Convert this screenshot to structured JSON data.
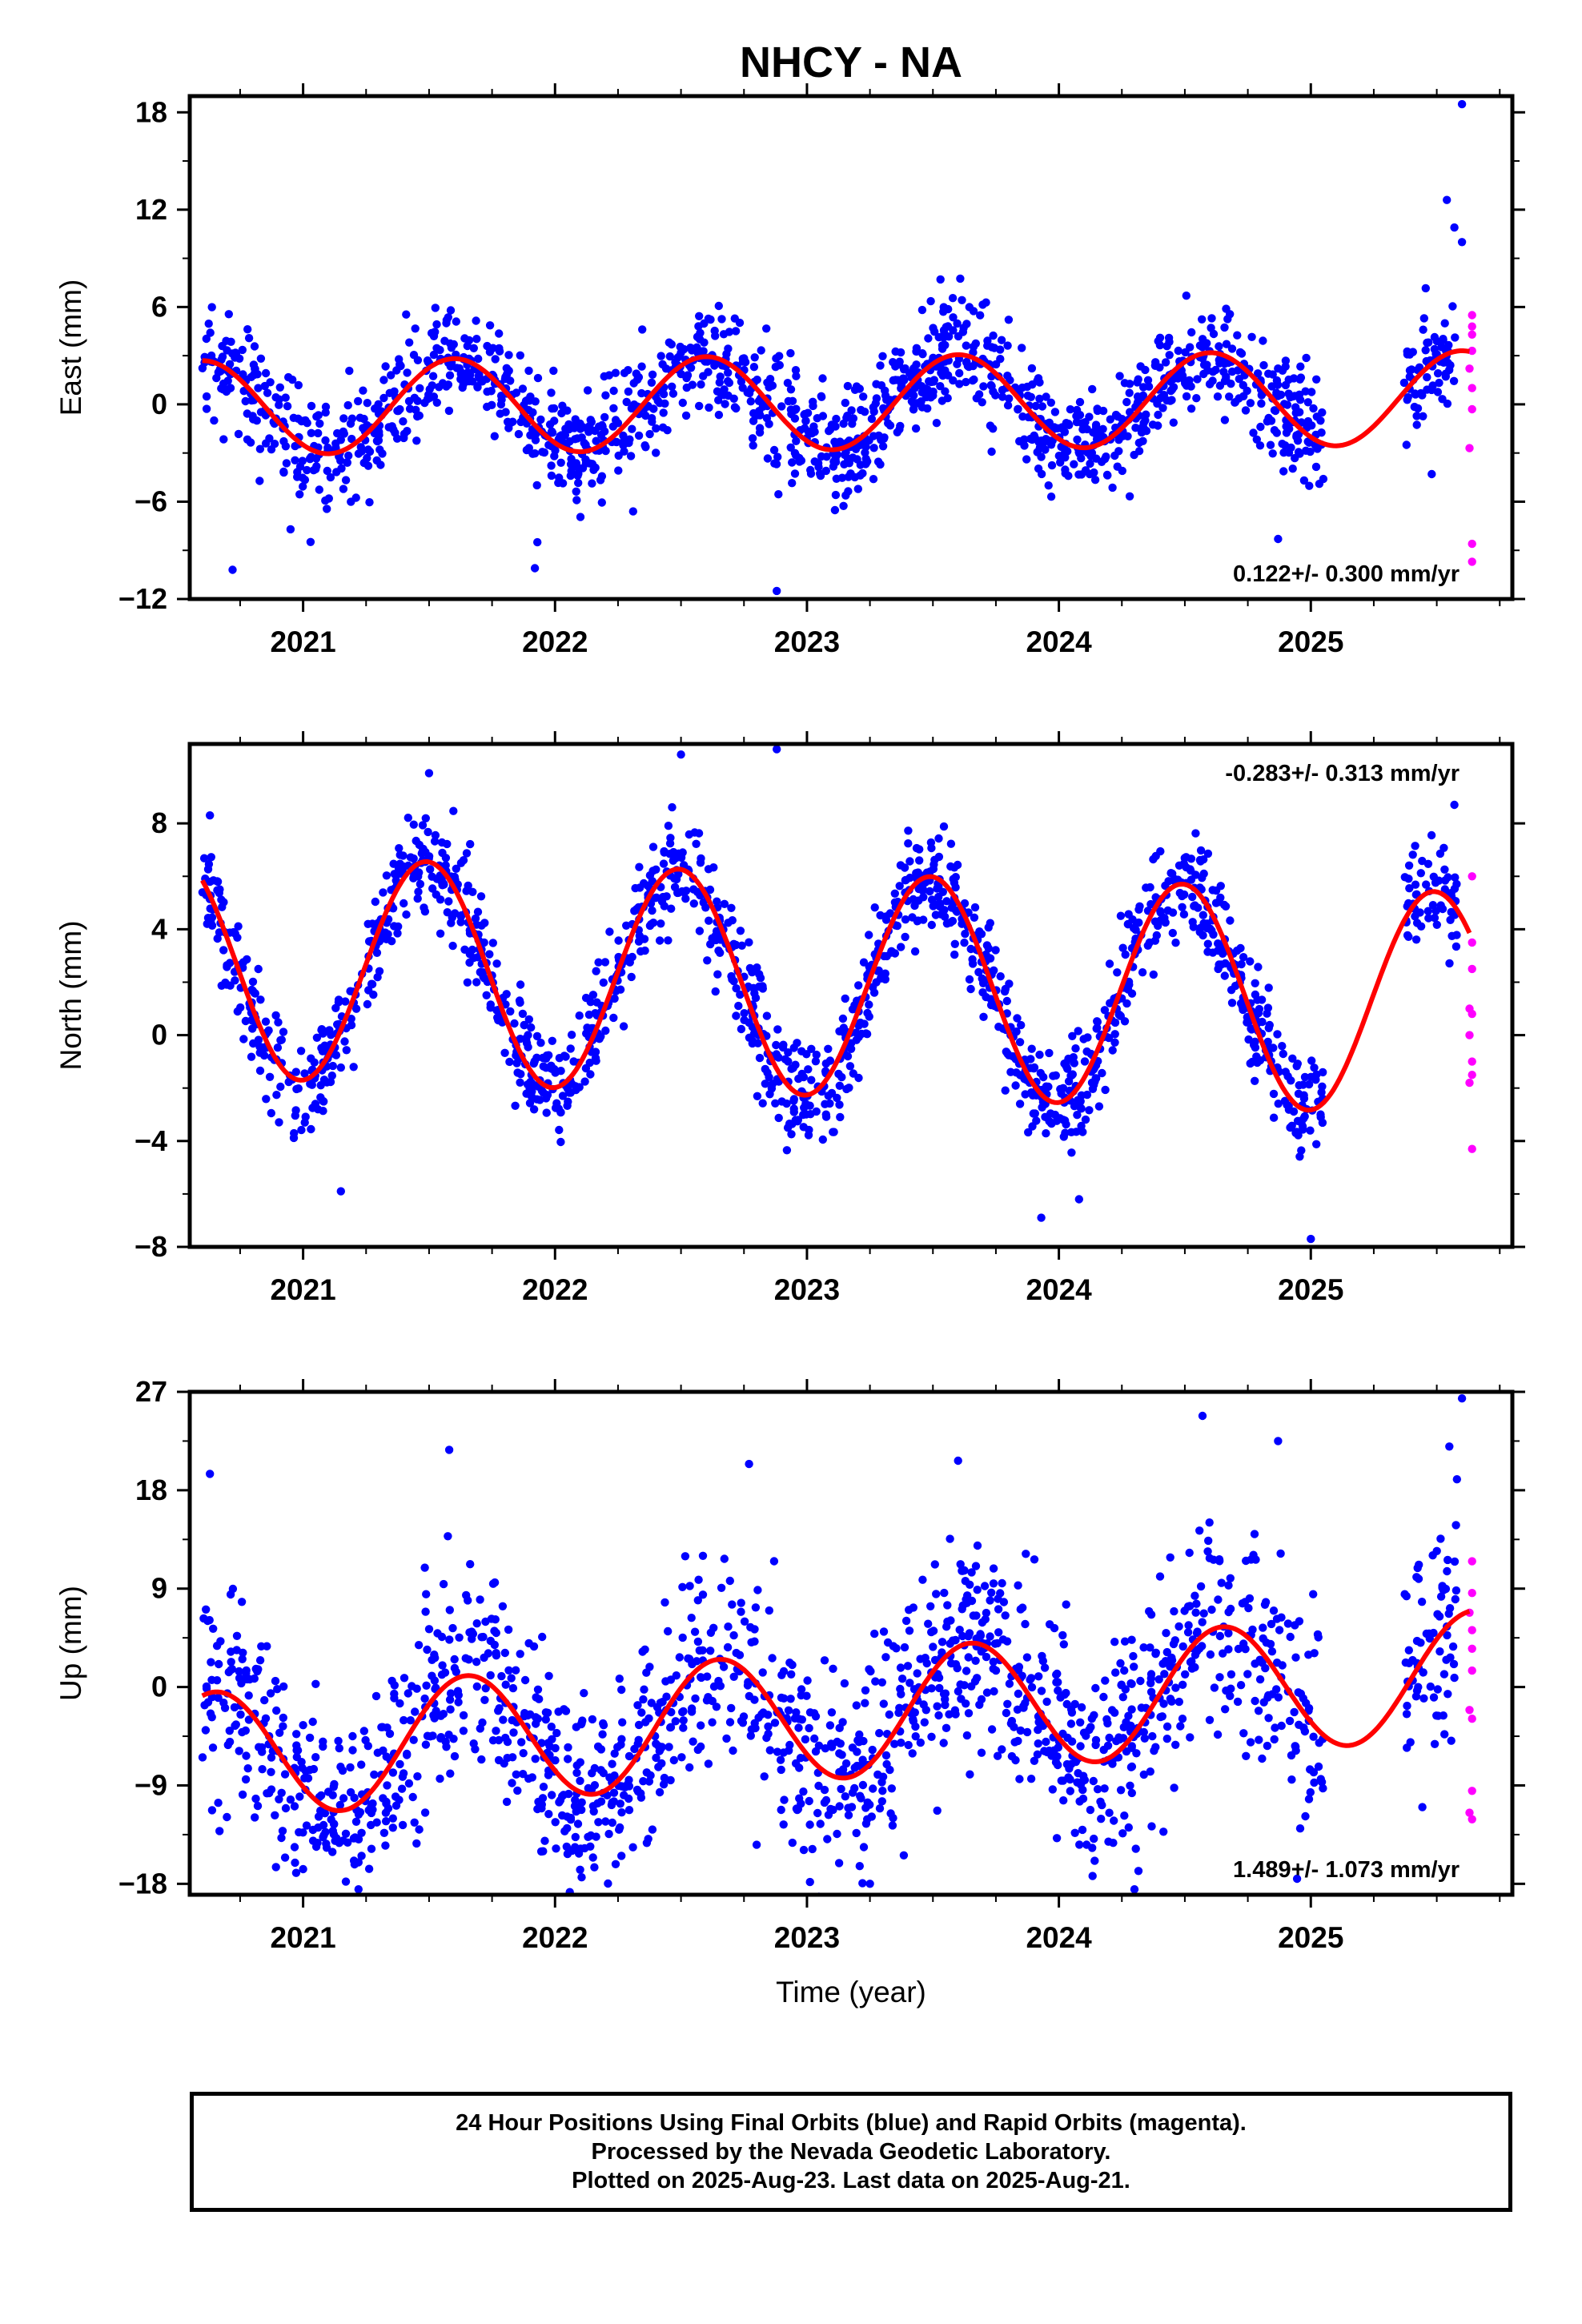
{
  "page": {
    "title": "NHCY - NA",
    "xlabel": "Time (year)",
    "caption": [
      "24 Hour Positions Using Final Orbits (blue) and Rapid Orbits (magenta).",
      "Processed by the Nevada Geodetic Laboratory.",
      "Plotted on 2025-Aug-23. Last data on 2025-Aug-21."
    ]
  },
  "colors": {
    "final_orbits": "#0000ff",
    "rapid_orbits": "#ff00ff",
    "model_fit": "#ff0000",
    "frame": "#000000"
  },
  "chart_data": [
    {
      "type": "scatter",
      "ylabel": "East (mm)",
      "rate_label": "0.122+/- 0.300 mm/yr",
      "rate_position": "bottom-right",
      "xlim": [
        2020.55,
        2025.8
      ],
      "ylim": [
        -12,
        19
      ],
      "xticks": [
        2021,
        2022,
        2023,
        2024,
        2025
      ],
      "xtick_labels": [
        "2021",
        "2022",
        "2023",
        "2024",
        "2025"
      ],
      "yticks": [
        -12,
        -6,
        0,
        6,
        12,
        18
      ],
      "ytick_labels": [
        "−12",
        "−6",
        "0",
        "6",
        "12",
        "18"
      ],
      "grid": false,
      "series": [
        {
          "key": "final",
          "color": "#0000ff",
          "scatter": 1.7,
          "seasonal": {
            "trend": 0.122,
            "offset": 0.1,
            "amp": 2.9,
            "phase": 2021.6
          },
          "gap": [
            2025.05,
            2025.37
          ],
          "x_range": [
            2020.6,
            2025.58
          ],
          "n": 1650,
          "outliers": [
            [
              2020.72,
              -10.2
            ],
            [
              2020.95,
              -7.7
            ],
            [
              2021.92,
              -10.1
            ],
            [
              2021.93,
              -8.5
            ],
            [
              2022.88,
              -11.5
            ],
            [
              2023.53,
              7.7
            ],
            [
              2024.87,
              -8.3
            ],
            [
              2025.54,
              12.6
            ],
            [
              2025.57,
              10.9
            ],
            [
              2025.6,
              18.5
            ],
            [
              2025.6,
              10.0
            ],
            [
              2025.48,
              -4.3
            ],
            [
              2022.31,
              -6.6
            ]
          ]
        },
        {
          "key": "rapid",
          "color": "#ff00ff",
          "points": [
            [
              2025.64,
              5.5
            ],
            [
              2025.64,
              4.8
            ],
            [
              2025.64,
              4.3
            ],
            [
              2025.64,
              3.3
            ],
            [
              2025.63,
              2.2
            ],
            [
              2025.64,
              1.0
            ],
            [
              2025.64,
              -0.3
            ],
            [
              2025.63,
              -2.7
            ],
            [
              2025.64,
              -8.6
            ],
            [
              2025.64,
              -9.7
            ]
          ]
        }
      ],
      "model": {
        "color": "#ff0000",
        "x_range": [
          2020.6,
          2025.63
        ],
        "trend": 0.122,
        "offset": 0.1,
        "amp": 2.9,
        "phase": 2021.6
      }
    },
    {
      "type": "scatter",
      "ylabel": "North (mm)",
      "rate_label": "-0.283+/- 0.313 mm/yr",
      "rate_position": "top-right",
      "xlim": [
        2020.55,
        2025.8
      ],
      "ylim": [
        -8,
        11
      ],
      "xticks": [
        2021,
        2022,
        2023,
        2024,
        2025
      ],
      "xtick_labels": [
        "2021",
        "2022",
        "2023",
        "2024",
        "2025"
      ],
      "yticks": [
        -8,
        -4,
        0,
        4,
        8
      ],
      "ytick_labels": [
        "−8",
        "−4",
        "0",
        "4",
        "8"
      ],
      "grid": false,
      "series": [
        {
          "key": "final",
          "color": "#0000ff",
          "scatter": 1.0,
          "seasonal": {
            "trend": -0.283,
            "offset": 1.9,
            "amp": 4.2,
            "phase": 2021.49
          },
          "gap": [
            2025.05,
            2025.37
          ],
          "x_range": [
            2020.6,
            2025.58
          ],
          "n": 1650,
          "outliers": [
            [
              2020.63,
              8.3
            ],
            [
              2021.15,
              -5.9
            ],
            [
              2021.5,
              9.9
            ],
            [
              2022.5,
              10.6
            ],
            [
              2022.88,
              10.8
            ],
            [
              2023.93,
              -6.9
            ],
            [
              2024.08,
              -6.2
            ],
            [
              2025.0,
              -7.7
            ],
            [
              2025.57,
              8.7
            ]
          ]
        },
        {
          "key": "rapid",
          "color": "#ff00ff",
          "points": [
            [
              2025.64,
              6.0
            ],
            [
              2025.64,
              3.5
            ],
            [
              2025.64,
              2.5
            ],
            [
              2025.63,
              1.0
            ],
            [
              2025.64,
              0.8
            ],
            [
              2025.63,
              0.0
            ],
            [
              2025.64,
              -1.0
            ],
            [
              2025.64,
              -1.5
            ],
            [
              2025.63,
              -1.8
            ],
            [
              2025.64,
              -4.3
            ]
          ]
        }
      ],
      "model": {
        "color": "#ff0000",
        "x_range": [
          2020.6,
          2025.63
        ],
        "trend": -0.283,
        "offset": 1.9,
        "amp": 4.2,
        "phase": 2021.49
      }
    },
    {
      "type": "scatter",
      "ylabel": "Up (mm)",
      "rate_label": "1.489+/- 1.073 mm/yr",
      "rate_position": "bottom-right",
      "xlim": [
        2020.55,
        2025.8
      ],
      "ylim": [
        -19,
        27
      ],
      "xticks": [
        2021,
        2022,
        2023,
        2024,
        2025
      ],
      "xtick_labels": [
        "2021",
        "2022",
        "2023",
        "2024",
        "2025"
      ],
      "yticks": [
        -18,
        -9,
        0,
        9,
        18,
        27
      ],
      "ytick_labels": [
        "−18",
        "−9",
        "0",
        "9",
        "18",
        "27"
      ],
      "grid": false,
      "series": [
        {
          "key": "final",
          "color": "#0000ff",
          "scatter": 4.8,
          "seasonal": {
            "trend": 1.489,
            "offset": -2.6,
            "amp": 5.8,
            "phase": 2021.65
          },
          "gap": [
            2025.05,
            2025.37
          ],
          "x_range": [
            2020.6,
            2025.58
          ],
          "n": 1650,
          "outliers": [
            [
              2020.63,
              19.5
            ],
            [
              2021.22,
              -18.5
            ],
            [
              2021.58,
              21.7
            ],
            [
              2022.77,
              20.4
            ],
            [
              2023.25,
              -18.0
            ],
            [
              2023.6,
              20.7
            ],
            [
              2024.3,
              -18.5
            ],
            [
              2024.57,
              24.8
            ],
            [
              2024.87,
              22.5
            ],
            [
              2025.55,
              22.0
            ],
            [
              2025.6,
              26.4
            ],
            [
              2025.58,
              19.0
            ]
          ]
        },
        {
          "key": "rapid",
          "color": "#ff00ff",
          "points": [
            [
              2025.64,
              11.5
            ],
            [
              2025.64,
              8.6
            ],
            [
              2025.63,
              6.8
            ],
            [
              2025.64,
              5.2
            ],
            [
              2025.64,
              3.5
            ],
            [
              2025.64,
              1.5
            ],
            [
              2025.63,
              -2.1
            ],
            [
              2025.64,
              -2.9
            ],
            [
              2025.64,
              -9.5
            ],
            [
              2025.63,
              -11.5
            ],
            [
              2025.64,
              -12.1
            ]
          ]
        }
      ],
      "model": {
        "color": "#ff0000",
        "x_range": [
          2020.6,
          2025.63
        ],
        "trend": 1.489,
        "offset": -2.6,
        "amp": 5.8,
        "phase": 2021.65
      }
    }
  ]
}
